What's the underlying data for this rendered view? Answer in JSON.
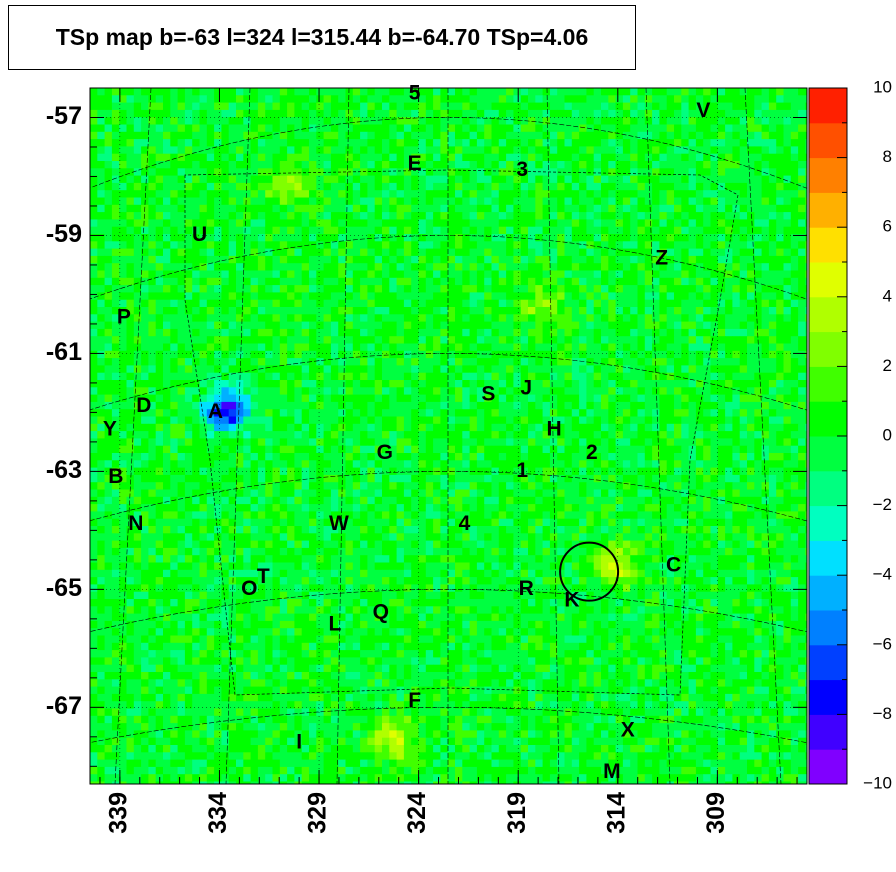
{
  "chart_data": {
    "type": "heatmap",
    "title": "TSp map b=-63 l=324 l=315.44 b=-64.70 TSp=4.06",
    "x_ticks": [
      "339",
      "334",
      "329",
      "324",
      "319",
      "314",
      "309"
    ],
    "x_tick_values": [
      339,
      334,
      329,
      324,
      319,
      314,
      309
    ],
    "xlim": [
      340.5,
      304.5
    ],
    "y_ticks": [
      "-57",
      "-59",
      "-61",
      "-63",
      "-65",
      "-67"
    ],
    "y_tick_values": [
      -57,
      -59,
      -61,
      -63,
      -65,
      -67
    ],
    "ylim": [
      -68.3,
      -56.5
    ],
    "colorbar": {
      "min": -10,
      "max": 10,
      "ticks": [
        "10",
        "8",
        "6",
        "4",
        "2",
        "0",
        "−2",
        "−4",
        "−6",
        "−8",
        "−10"
      ],
      "tick_values": [
        10,
        8,
        6,
        4,
        2,
        0,
        -2,
        -4,
        -6,
        -8,
        -10
      ]
    },
    "background_value": 0,
    "hotspots": [
      {
        "l": 333.8,
        "b": -61.9,
        "value": -8,
        "label": "negative"
      },
      {
        "l": 314.3,
        "b": -64.5,
        "value": 4.06,
        "label": "circled source"
      },
      {
        "l": 325.5,
        "b": -67.5,
        "value": 4
      },
      {
        "l": 318.0,
        "b": -60.1,
        "value": 3
      },
      {
        "l": 330.5,
        "b": -58.1,
        "value": 3
      }
    ],
    "circle": {
      "l": 315.44,
      "b": -64.7
    },
    "labels": [
      {
        "text": "5",
        "l": 324.2,
        "b": -56.6
      },
      {
        "text": "V",
        "l": 309.7,
        "b": -56.9
      },
      {
        "text": "E",
        "l": 324.2,
        "b": -57.8
      },
      {
        "text": "3",
        "l": 318.8,
        "b": -57.9
      },
      {
        "text": "U",
        "l": 335.0,
        "b": -59.0
      },
      {
        "text": "Z",
        "l": 311.8,
        "b": -59.4
      },
      {
        "text": "P",
        "l": 338.8,
        "b": -60.4
      },
      {
        "text": "S",
        "l": 320.5,
        "b": -61.7
      },
      {
        "text": "J",
        "l": 318.6,
        "b": -61.6
      },
      {
        "text": "D",
        "l": 337.8,
        "b": -61.9
      },
      {
        "text": "A",
        "l": 334.2,
        "b": -62.0
      },
      {
        "text": "Y",
        "l": 339.5,
        "b": -62.3
      },
      {
        "text": "H",
        "l": 317.2,
        "b": -62.3
      },
      {
        "text": "G",
        "l": 325.7,
        "b": -62.7
      },
      {
        "text": "2",
        "l": 315.3,
        "b": -62.7
      },
      {
        "text": "1",
        "l": 318.8,
        "b": -63.0
      },
      {
        "text": "B",
        "l": 339.2,
        "b": -63.1
      },
      {
        "text": "N",
        "l": 338.2,
        "b": -63.9
      },
      {
        "text": "W",
        "l": 328.0,
        "b": -63.9
      },
      {
        "text": "4",
        "l": 321.7,
        "b": -63.9
      },
      {
        "text": "C",
        "l": 311.2,
        "b": -64.6
      },
      {
        "text": "T",
        "l": 331.8,
        "b": -64.8
      },
      {
        "text": "O",
        "l": 332.5,
        "b": -65.0
      },
      {
        "text": "R",
        "l": 318.6,
        "b": -65.0
      },
      {
        "text": "K",
        "l": 316.3,
        "b": -65.2
      },
      {
        "text": "Q",
        "l": 325.9,
        "b": -65.4
      },
      {
        "text": "L",
        "l": 328.2,
        "b": -65.6
      },
      {
        "text": "F",
        "l": 324.2,
        "b": -66.9
      },
      {
        "text": "X",
        "l": 313.5,
        "b": -67.4
      },
      {
        "text": "I",
        "l": 330.0,
        "b": -67.6
      },
      {
        "text": "M",
        "l": 314.3,
        "b": -68.1
      }
    ]
  },
  "colors": {
    "background_green": "#00ff33",
    "palette": [
      "#8000ff",
      "#4000ff",
      "#0000ff",
      "#0040ff",
      "#0080ff",
      "#00b0ff",
      "#00e0ff",
      "#00ffc0",
      "#00ff80",
      "#00ff40",
      "#00ff00",
      "#40ff00",
      "#80ff00",
      "#b0ff00",
      "#e0ff00",
      "#ffe000",
      "#ffb000",
      "#ff8000",
      "#ff5000",
      "#ff2000"
    ]
  }
}
